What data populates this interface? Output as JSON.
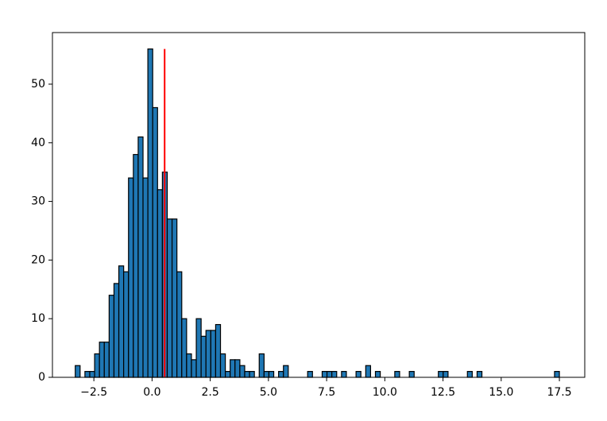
{
  "chart_data": {
    "type": "histogram",
    "bins": [
      -3.3,
      -3.092,
      -2.884,
      -2.676,
      -2.468,
      -2.26,
      -2.052,
      -1.844,
      -1.636,
      -1.428,
      -1.22,
      -1.012,
      -0.804,
      -0.596,
      -0.388,
      -0.18,
      0.028,
      0.236,
      0.444,
      0.652,
      0.86,
      1.068,
      1.276,
      1.484,
      1.692,
      1.9,
      2.108,
      2.316,
      2.524,
      2.732,
      2.94,
      3.148,
      3.356,
      3.564,
      3.772,
      3.98,
      4.188,
      4.396,
      4.604,
      4.812,
      5.02,
      5.228,
      5.436,
      5.644,
      5.852,
      6.06,
      6.268,
      6.476,
      6.684,
      6.892,
      7.1,
      7.308,
      7.516,
      7.724,
      7.932,
      8.14,
      8.348,
      8.556,
      8.764,
      8.972,
      9.18,
      9.388,
      9.596,
      9.804,
      10.012,
      10.22,
      10.428,
      10.636,
      10.844,
      11.052,
      11.26,
      11.468,
      11.676,
      11.884,
      12.092,
      12.3,
      12.508,
      12.716,
      12.924,
      13.132,
      13.34,
      13.548,
      13.756,
      13.964,
      14.172,
      14.38,
      14.588,
      14.796,
      15.004,
      15.212,
      15.42,
      15.628,
      15.836,
      16.044,
      16.252,
      16.46,
      16.668,
      16.876,
      17.084,
      17.292,
      17.5
    ],
    "values": [
      2,
      0,
      1,
      1,
      4,
      6,
      6,
      14,
      16,
      19,
      18,
      34,
      38,
      41,
      34,
      56,
      46,
      32,
      35,
      27,
      27,
      18,
      10,
      4,
      3,
      10,
      7,
      8,
      8,
      9,
      4,
      1,
      3,
      3,
      2,
      1,
      1,
      0,
      4,
      1,
      1,
      0,
      1,
      2,
      0,
      0,
      0,
      0,
      1,
      0,
      0,
      1,
      1,
      1,
      0,
      1,
      0,
      0,
      1,
      0,
      2,
      0,
      1,
      0,
      0,
      0,
      1,
      0,
      0,
      1,
      0,
      0,
      0,
      0,
      0,
      1,
      1,
      0,
      0,
      0,
      0,
      1,
      0,
      1,
      0,
      0,
      0,
      0,
      0,
      0,
      0,
      0,
      0,
      0,
      0,
      0,
      0,
      0,
      0,
      1
    ],
    "color": "#1f77b4",
    "edgecolor": "#000000",
    "vline": {
      "x": 0.54,
      "ymin": 0,
      "ymax": 56,
      "color": "#ff0000"
    },
    "xlim": [
      -4.28,
      18.59
    ],
    "xticks": [
      {
        "value": -2.5,
        "label": "−2.5"
      },
      {
        "value": 0,
        "label": "0.0"
      },
      {
        "value": 2.5,
        "label": "2.5"
      },
      {
        "value": 5,
        "label": "5.0"
      },
      {
        "value": 7.5,
        "label": "7.5"
      },
      {
        "value": 10,
        "label": "10.0"
      },
      {
        "value": 12.5,
        "label": "12.5"
      },
      {
        "value": 15,
        "label": "15.0"
      },
      {
        "value": 17.5,
        "label": "17.5"
      }
    ],
    "ylim": [
      0,
      58.8
    ],
    "yticks": [
      0,
      10,
      20,
      30,
      40,
      50
    ]
  }
}
